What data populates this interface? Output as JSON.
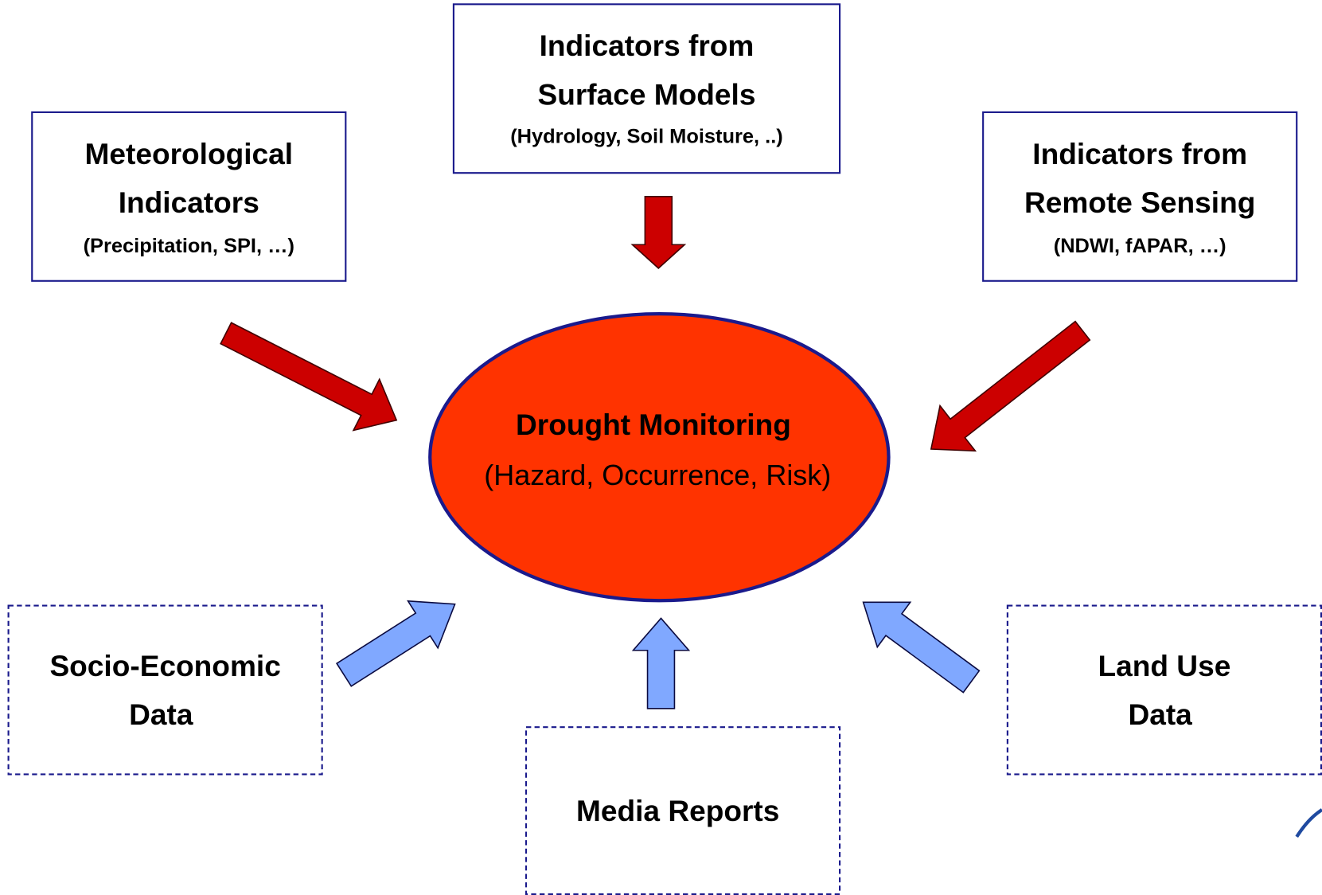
{
  "center": {
    "title": "Drought Monitoring",
    "subtitle": "(Hazard, Occurrence, Risk)"
  },
  "nodes": [
    {
      "lines": [
        "Meteorological",
        "Indicators"
      ],
      "note": "(Precipitation, SPI, …)"
    },
    {
      "lines": [
        "Indicators from",
        "Surface Models"
      ],
      "note": "(Hydrology, Soil Moisture, ..)"
    },
    {
      "lines": [
        "Indicators from",
        "Remote Sensing"
      ],
      "note": "(NDWI, fAPAR, …)"
    },
    {
      "lines": [
        "Socio-Economic",
        "Data"
      ]
    },
    {
      "lines": [
        "Media Reports"
      ]
    },
    {
      "lines": [
        "Land Use",
        "Data"
      ]
    }
  ]
}
